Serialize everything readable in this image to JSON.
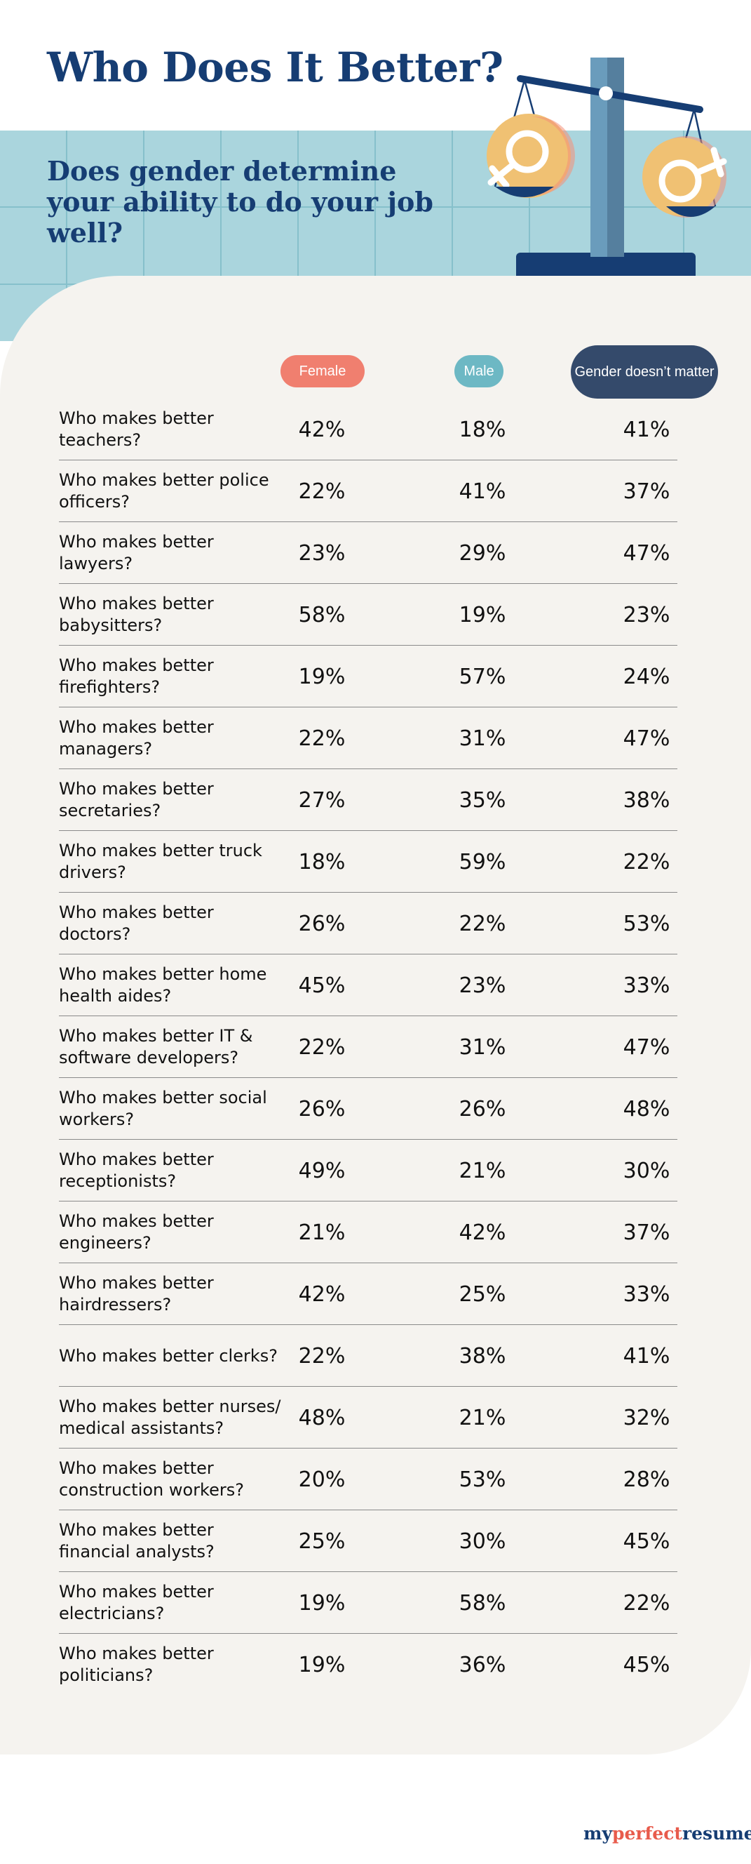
{
  "title": "Who Does It Better?",
  "subtitle": "Does gender determine your ability to do your job well?",
  "colors": {
    "title": "#163d73",
    "grid_band": "#aad5dd",
    "card": "#f5f3ef",
    "female": "#f07f6f",
    "male": "#6db8c4",
    "neutral": "#344a6b"
  },
  "icons": {
    "scale": "balance-scale-icon",
    "female": "female-symbol-icon",
    "male": "male-symbol-icon"
  },
  "brand": {
    "part1": "my",
    "part2": "perfect",
    "part3": "resume"
  },
  "chart_data": {
    "type": "table",
    "columns": [
      "Female",
      "Male",
      "Gender doesn’t matter"
    ],
    "rows": [
      {
        "question": "Who makes better teachers?",
        "female": "42%",
        "male": "18%",
        "neutral": "41%"
      },
      {
        "question": "Who makes better police officers?",
        "female": "22%",
        "male": "41%",
        "neutral": "37%"
      },
      {
        "question": "Who makes better lawyers?",
        "female": "23%",
        "male": "29%",
        "neutral": "47%"
      },
      {
        "question": "Who makes better babysitters?",
        "female": "58%",
        "male": "19%",
        "neutral": "23%"
      },
      {
        "question": "Who makes better firefighters?",
        "female": "19%",
        "male": "57%",
        "neutral": "24%"
      },
      {
        "question": "Who makes better managers?",
        "female": "22%",
        "male": "31%",
        "neutral": "47%"
      },
      {
        "question": "Who makes better secretaries?",
        "female": "27%",
        "male": "35%",
        "neutral": "38%"
      },
      {
        "question": "Who makes better truck drivers?",
        "female": "18%",
        "male": "59%",
        "neutral": "22%"
      },
      {
        "question": "Who makes better doctors?",
        "female": "26%",
        "male": "22%",
        "neutral": "53%"
      },
      {
        "question": "Who makes better home health aides?",
        "female": "45%",
        "male": "23%",
        "neutral": "33%"
      },
      {
        "question": "Who makes better IT & software developers?",
        "female": "22%",
        "male": "31%",
        "neutral": "47%"
      },
      {
        "question": "Who makes better social workers?",
        "female": "26%",
        "male": "26%",
        "neutral": "48%"
      },
      {
        "question": "Who makes better receptionists?",
        "female": "49%",
        "male": "21%",
        "neutral": "30%"
      },
      {
        "question": "Who makes better engineers?",
        "female": "21%",
        "male": "42%",
        "neutral": "37%"
      },
      {
        "question": "Who makes better hairdressers?",
        "female": "42%",
        "male": "25%",
        "neutral": "33%"
      },
      {
        "question": "Who makes better clerks?",
        "female": "22%",
        "male": "38%",
        "neutral": "41%"
      },
      {
        "question": "Who makes better nurses/ medical assistants?",
        "female": "48%",
        "male": "21%",
        "neutral": "32%"
      },
      {
        "question": "Who makes better construction workers?",
        "female": "20%",
        "male": "53%",
        "neutral": "28%"
      },
      {
        "question": "Who makes better financial analysts?",
        "female": "25%",
        "male": "30%",
        "neutral": "45%"
      },
      {
        "question": "Who makes better electricians?",
        "female": "19%",
        "male": "58%",
        "neutral": "22%"
      },
      {
        "question": "Who makes better politicians?",
        "female": "19%",
        "male": "36%",
        "neutral": "45%"
      }
    ]
  }
}
